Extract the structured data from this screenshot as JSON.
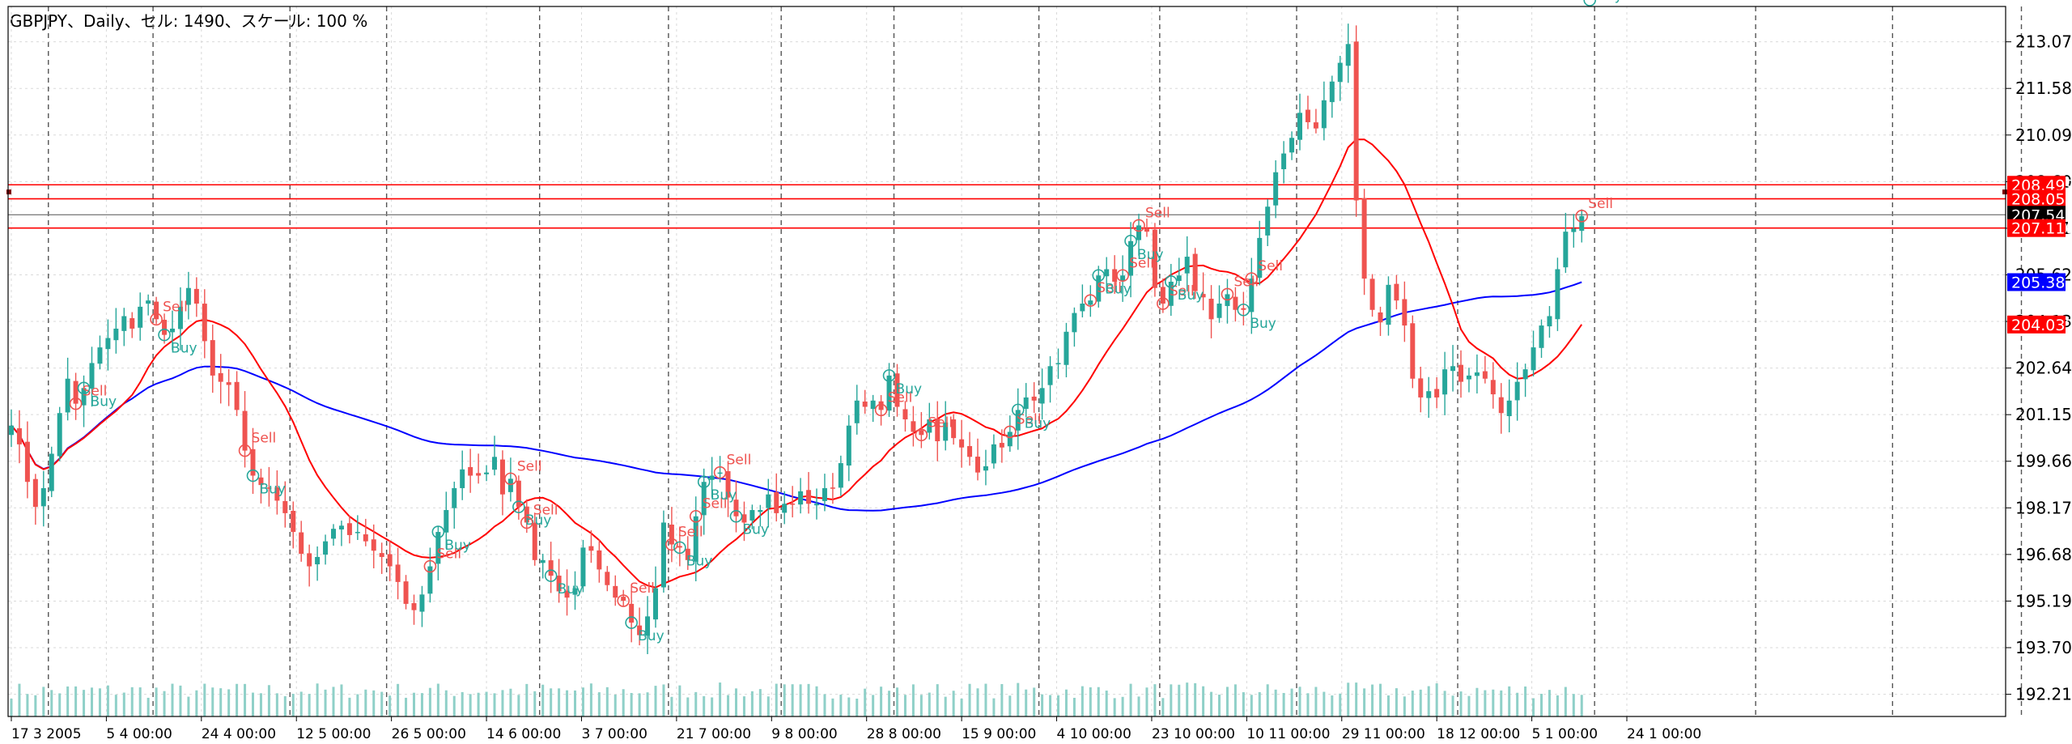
{
  "header": {
    "title": "GBPJPY、Daily、セル: 1490、スケール: 100 %"
  },
  "colors": {
    "background": "#ffffff",
    "grid": "#d9d9d9",
    "bull": "#26a69a",
    "bear": "#ef5350",
    "ma_fast": "#ff0000",
    "ma_slow": "#0000ff",
    "hline": "#ff0000",
    "price_line": "#808080",
    "volume": "#8fd0c8",
    "sell_signal": "#ef5350",
    "buy_signal": "#26a69a"
  },
  "chart_data": {
    "type": "candlestick",
    "symbol": "GBPJPY",
    "timeframe": "Daily",
    "ylim": [
      191.5,
      214.2
    ],
    "y_ticks": [
      "213.070",
      "211.580",
      "210.090",
      "208.600",
      "207.110",
      "205.620",
      "204.130",
      "202.640",
      "201.150",
      "199.660",
      "198.170",
      "196.680",
      "195.190",
      "193.700",
      "192.210"
    ],
    "x_ticks": [
      "17 3 2005",
      "5 4 00:00",
      "24 4 00:00",
      "12 5 00:00",
      "26 5 00:00",
      "14 6 00:00",
      "3 7 00:00",
      "21 7 00:00",
      "9 8 00:00",
      "28 8 00:00",
      "15 9 00:00",
      "4 10 00:00",
      "23 10 00:00",
      "10 11 00:00",
      "29 11 00:00",
      "18 12 00:00",
      "5 1 00:00",
      "24 1 00:00"
    ],
    "period_separators": [
      5,
      18,
      35,
      47,
      66,
      82,
      96,
      110,
      128,
      143,
      160,
      180,
      197,
      217,
      234,
      250
    ],
    "close": [
      200.8,
      200.2,
      199.0,
      198.2,
      198.8,
      199.9,
      201.2,
      202.3,
      201.5,
      202.0,
      202.8,
      203.3,
      203.6,
      203.9,
      204.3,
      203.9,
      204.6,
      204.8,
      204.2,
      203.7,
      203.9,
      204.6,
      205.2,
      204.7,
      203.5,
      202.4,
      202.2,
      202.1,
      201.3,
      200.0,
      199.2,
      198.9,
      198.8,
      198.4,
      198.0,
      197.4,
      196.7,
      196.3,
      196.6,
      197.1,
      197.5,
      197.6,
      197.3,
      197.4,
      197.1,
      196.8,
      196.6,
      196.3,
      195.8,
      195.1,
      194.9,
      195.4,
      196.3,
      197.4,
      198.1,
      198.8,
      199.4,
      199.2,
      199.2,
      199.3,
      199.8,
      198.6,
      199.1,
      198.2,
      197.7,
      196.5,
      196.5,
      196.0,
      195.5,
      195.3,
      195.6,
      196.9,
      196.8,
      196.2,
      195.7,
      195.3,
      195.2,
      194.5,
      194.1,
      194.7,
      195.6,
      197.7,
      197.0,
      196.9,
      196.5,
      197.9,
      199.0,
      199.2,
      199.3,
      198.5,
      197.9,
      197.7,
      198.1,
      198.1,
      198.6,
      198.0,
      198.3,
      198.3,
      198.7,
      198.3,
      198.3,
      198.8,
      198.8,
      199.6,
      200.8,
      201.6,
      201.4,
      201.6,
      201.3,
      202.4,
      201.4,
      201.0,
      200.6,
      200.5,
      201.0,
      200.3,
      200.9,
      200.4,
      200.1,
      199.8,
      199.3,
      199.5,
      200.2,
      200.1,
      200.6,
      201.3,
      201.7,
      201.6,
      202.0,
      202.7,
      202.8,
      203.8,
      204.4,
      204.7,
      204.8,
      205.6,
      205.8,
      205.4,
      205.6,
      206.7,
      207.2,
      207.0,
      205.2,
      204.7,
      205.4,
      205.6,
      206.2,
      205.1,
      204.9,
      204.2,
      204.7,
      205.0,
      204.5,
      204.5,
      205.5,
      206.8,
      207.8,
      208.9,
      209.5,
      210.0,
      210.8,
      210.5,
      210.3,
      211.2,
      211.8,
      212.4,
      213.0,
      208.0,
      205.5,
      204.5,
      204.1,
      205.3,
      204.8,
      204.0,
      202.3,
      201.7,
      201.9,
      201.7,
      202.6,
      202.7,
      202.2,
      202.4,
      202.5,
      202.3,
      201.8,
      201.2,
      201.6,
      202.2,
      202.6,
      203.3,
      204.0,
      204.3,
      205.8,
      207.0,
      207.1,
      207.5
    ],
    "indicators": {
      "ma_fast": {
        "label": "204.032",
        "value": 204.032
      },
      "ma_slow": {
        "label": "205.387",
        "value": 205.387
      }
    },
    "horizontal_lines": [
      {
        "label": "208.499",
        "value": 208.499
      },
      {
        "label": "208.052",
        "value": 208.052
      },
      {
        "label": "207.116",
        "value": 207.116
      }
    ],
    "current_price": {
      "label": "207.540",
      "value": 207.54
    },
    "signals": [
      {
        "i": 8,
        "text": "Sell",
        "side": "sell"
      },
      {
        "i": 9,
        "text": "Buy",
        "side": "buy"
      },
      {
        "i": 18,
        "text": "Sell",
        "side": "sell"
      },
      {
        "i": 19,
        "text": "Buy",
        "side": "buy"
      },
      {
        "i": 29,
        "text": "Sell",
        "side": "sell"
      },
      {
        "i": 30,
        "text": "Buy",
        "side": "buy"
      },
      {
        "i": 52,
        "text": "Sell",
        "side": "sell"
      },
      {
        "i": 53,
        "text": "Buy",
        "side": "buy"
      },
      {
        "i": 62,
        "text": "Sell",
        "side": "sell"
      },
      {
        "i": 63,
        "text": "Buy",
        "side": "buy"
      },
      {
        "i": 64,
        "text": "Sell",
        "side": "sell"
      },
      {
        "i": 67,
        "text": "Buy",
        "side": "buy"
      },
      {
        "i": 76,
        "text": "Sell",
        "side": "sell"
      },
      {
        "i": 77,
        "text": "Buy",
        "side": "buy"
      },
      {
        "i": 82,
        "text": "Sell",
        "side": "sell"
      },
      {
        "i": 83,
        "text": "Buy",
        "side": "buy"
      },
      {
        "i": 85,
        "text": "Sell",
        "side": "sell"
      },
      {
        "i": 86,
        "text": "Buy",
        "side": "buy"
      },
      {
        "i": 88,
        "text": "Sell",
        "side": "sell"
      },
      {
        "i": 90,
        "text": "Buy",
        "side": "buy"
      },
      {
        "i": 108,
        "text": "Sell",
        "side": "sell"
      },
      {
        "i": 109,
        "text": "Buy",
        "side": "buy"
      },
      {
        "i": 113,
        "text": "Sell",
        "side": "sell"
      },
      {
        "i": 124,
        "text": "Sell",
        "side": "sell"
      },
      {
        "i": 125,
        "text": "Buy",
        "side": "buy"
      },
      {
        "i": 134,
        "text": "Sell",
        "side": "sell"
      },
      {
        "i": 135,
        "text": "Buy",
        "side": "buy"
      },
      {
        "i": 138,
        "text": "Sell",
        "side": "sell"
      },
      {
        "i": 139,
        "text": "Buy",
        "side": "buy"
      },
      {
        "i": 140,
        "text": "Sell",
        "side": "sell"
      },
      {
        "i": 143,
        "text": "Sell",
        "side": "sell"
      },
      {
        "i": 144,
        "text": "Buy",
        "side": "buy"
      },
      {
        "i": 151,
        "text": "Sell",
        "side": "sell"
      },
      {
        "i": 153,
        "text": "Buy",
        "side": "buy"
      },
      {
        "i": 154,
        "text": "Sell",
        "side": "sell"
      },
      {
        "i": 195,
        "text": "Sell",
        "side": "sell"
      },
      {
        "i": 196,
        "text": "Buy",
        "side": "buy"
      }
    ]
  }
}
